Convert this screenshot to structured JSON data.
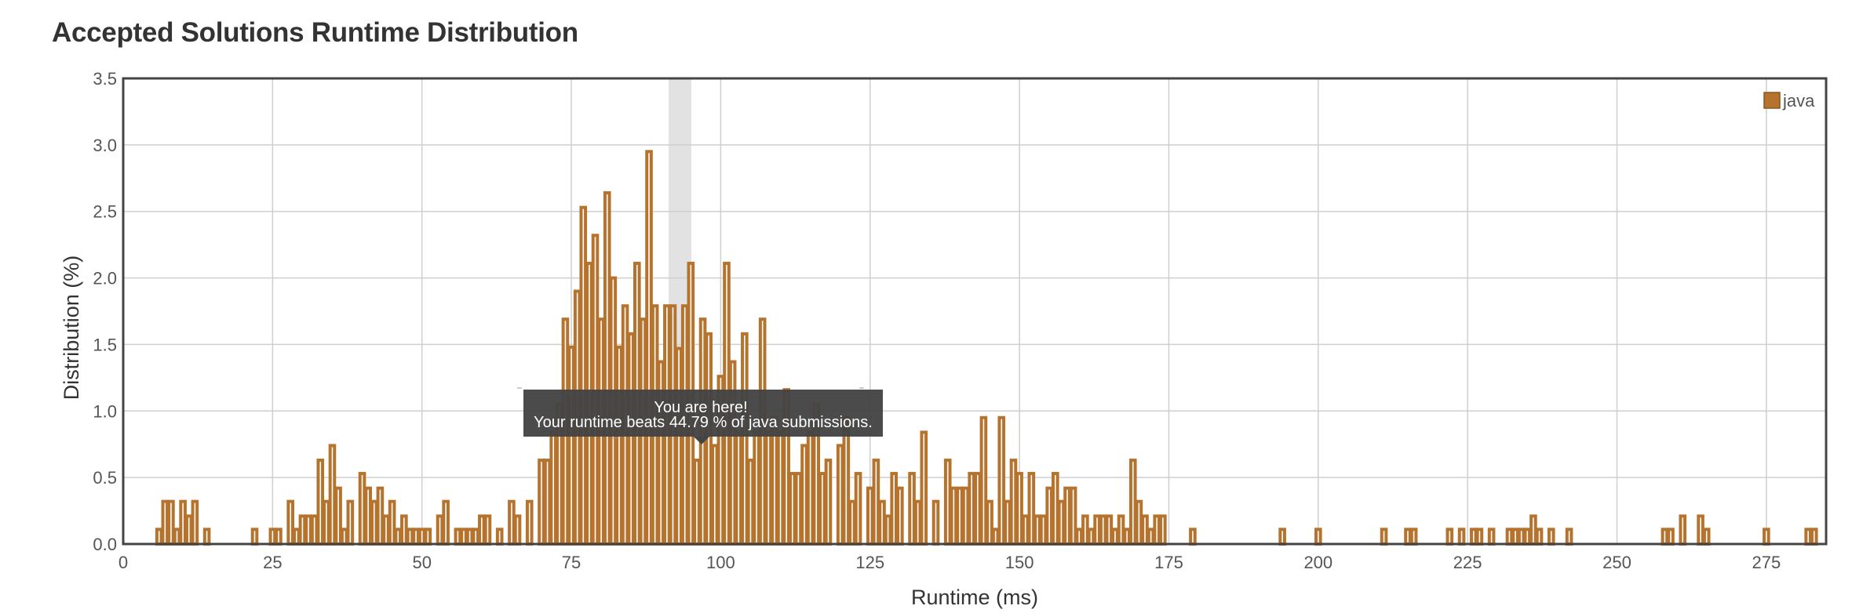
{
  "page_title": "Accepted Solutions Runtime Distribution",
  "chart_data": {
    "type": "bar",
    "title": "Accepted Solutions Runtime Distribution",
    "xlabel": "Runtime (ms)",
    "ylabel": "Distribution (%)",
    "xlim": [
      0,
      285
    ],
    "ylim": [
      0,
      3.5
    ],
    "x_ticks": [
      0,
      25,
      50,
      75,
      100,
      125,
      150,
      175,
      200,
      225,
      250,
      275
    ],
    "y_ticks": [
      "0.0",
      "0.5",
      "1.0",
      "1.5",
      "2.0",
      "2.5",
      "3.0",
      "3.5"
    ],
    "grid": true,
    "legend_position": "top-right",
    "highlight_runtime": 96,
    "series": [
      {
        "name": "java",
        "color": "#b5732d",
        "points": [
          [
            6,
            0.11
          ],
          [
            7,
            0.32
          ],
          [
            8,
            0.32
          ],
          [
            9,
            0.11
          ],
          [
            10,
            0.32
          ],
          [
            11,
            0.21
          ],
          [
            12,
            0.32
          ],
          [
            14,
            0.11
          ],
          [
            22,
            0.11
          ],
          [
            25,
            0.11
          ],
          [
            26,
            0.11
          ],
          [
            28,
            0.32
          ],
          [
            29,
            0.11
          ],
          [
            30,
            0.21
          ],
          [
            31,
            0.21
          ],
          [
            32,
            0.21
          ],
          [
            33,
            0.63
          ],
          [
            34,
            0.32
          ],
          [
            35,
            0.74
          ],
          [
            36,
            0.42
          ],
          [
            37,
            0.11
          ],
          [
            38,
            0.32
          ],
          [
            40,
            0.53
          ],
          [
            41,
            0.42
          ],
          [
            42,
            0.32
          ],
          [
            43,
            0.42
          ],
          [
            44,
            0.21
          ],
          [
            45,
            0.32
          ],
          [
            46,
            0.11
          ],
          [
            47,
            0.21
          ],
          [
            48,
            0.11
          ],
          [
            49,
            0.11
          ],
          [
            50,
            0.11
          ],
          [
            51,
            0.11
          ],
          [
            53,
            0.21
          ],
          [
            54,
            0.32
          ],
          [
            56,
            0.11
          ],
          [
            57,
            0.11
          ],
          [
            58,
            0.11
          ],
          [
            59,
            0.11
          ],
          [
            60,
            0.21
          ],
          [
            61,
            0.21
          ],
          [
            63,
            0.11
          ],
          [
            65,
            0.32
          ],
          [
            66,
            0.21
          ],
          [
            68,
            0.32
          ],
          [
            70,
            0.63
          ],
          [
            71,
            0.63
          ],
          [
            72,
            0.84
          ],
          [
            73,
            1.05
          ],
          [
            74,
            1.69
          ],
          [
            75,
            1.48
          ],
          [
            76,
            1.9
          ],
          [
            77,
            2.53
          ],
          [
            78,
            2.11
          ],
          [
            79,
            2.32
          ],
          [
            80,
            1.69
          ],
          [
            81,
            2.64
          ],
          [
            82,
            2.0
          ],
          [
            83,
            1.48
          ],
          [
            84,
            1.79
          ],
          [
            85,
            1.58
          ],
          [
            86,
            2.11
          ],
          [
            87,
            1.69
          ],
          [
            88,
            2.95
          ],
          [
            89,
            1.79
          ],
          [
            90,
            1.37
          ],
          [
            91,
            1.79
          ],
          [
            92,
            1.79
          ],
          [
            93,
            1.47
          ],
          [
            94,
            1.79
          ],
          [
            95,
            2.11
          ],
          [
            96,
            0.63
          ],
          [
            97,
            1.69
          ],
          [
            98,
            1.58
          ],
          [
            99,
            0.74
          ],
          [
            100,
            1.26
          ],
          [
            101,
            2.11
          ],
          [
            102,
            1.37
          ],
          [
            103,
            0.84
          ],
          [
            104,
            1.58
          ],
          [
            105,
            0.63
          ],
          [
            106,
            0.84
          ],
          [
            107,
            1.69
          ],
          [
            108,
            0.84
          ],
          [
            109,
            0.95
          ],
          [
            110,
            0.84
          ],
          [
            111,
            1.16
          ],
          [
            112,
            0.53
          ],
          [
            113,
            0.53
          ],
          [
            114,
            0.74
          ],
          [
            115,
            0.84
          ],
          [
            116,
            1.05
          ],
          [
            117,
            0.53
          ],
          [
            118,
            0.63
          ],
          [
            120,
            0.74
          ],
          [
            121,
            0.95
          ],
          [
            122,
            0.32
          ],
          [
            123,
            0.53
          ],
          [
            125,
            0.42
          ],
          [
            126,
            0.63
          ],
          [
            127,
            0.32
          ],
          [
            128,
            0.21
          ],
          [
            129,
            0.53
          ],
          [
            130,
            0.42
          ],
          [
            132,
            0.53
          ],
          [
            133,
            0.32
          ],
          [
            134,
            0.84
          ],
          [
            136,
            0.32
          ],
          [
            138,
            0.63
          ],
          [
            139,
            0.42
          ],
          [
            140,
            0.42
          ],
          [
            141,
            0.42
          ],
          [
            142,
            0.53
          ],
          [
            143,
            0.53
          ],
          [
            144,
            0.95
          ],
          [
            145,
            0.32
          ],
          [
            146,
            0.11
          ],
          [
            147,
            0.95
          ],
          [
            148,
            0.32
          ],
          [
            149,
            0.63
          ],
          [
            150,
            0.53
          ],
          [
            151,
            0.21
          ],
          [
            152,
            0.53
          ],
          [
            153,
            0.21
          ],
          [
            154,
            0.21
          ],
          [
            155,
            0.42
          ],
          [
            156,
            0.53
          ],
          [
            157,
            0.32
          ],
          [
            158,
            0.42
          ],
          [
            159,
            0.42
          ],
          [
            160,
            0.11
          ],
          [
            161,
            0.21
          ],
          [
            162,
            0.11
          ],
          [
            163,
            0.21
          ],
          [
            164,
            0.21
          ],
          [
            165,
            0.21
          ],
          [
            166,
            0.11
          ],
          [
            167,
            0.21
          ],
          [
            168,
            0.11
          ],
          [
            169,
            0.63
          ],
          [
            170,
            0.32
          ],
          [
            171,
            0.21
          ],
          [
            172,
            0.11
          ],
          [
            173,
            0.21
          ],
          [
            174,
            0.21
          ],
          [
            179,
            0.11
          ],
          [
            194,
            0.11
          ],
          [
            200,
            0.11
          ],
          [
            211,
            0.11
          ],
          [
            215,
            0.11
          ],
          [
            216,
            0.11
          ],
          [
            222,
            0.11
          ],
          [
            224,
            0.11
          ],
          [
            226,
            0.11
          ],
          [
            227,
            0.11
          ],
          [
            229,
            0.11
          ],
          [
            232,
            0.11
          ],
          [
            233,
            0.11
          ],
          [
            234,
            0.11
          ],
          [
            235,
            0.11
          ],
          [
            236,
            0.21
          ],
          [
            237,
            0.11
          ],
          [
            239,
            0.11
          ],
          [
            242,
            0.11
          ],
          [
            258,
            0.11
          ],
          [
            259,
            0.11
          ],
          [
            261,
            0.21
          ],
          [
            264,
            0.21
          ],
          [
            265,
            0.11
          ],
          [
            275,
            0.11
          ],
          [
            282,
            0.11
          ],
          [
            283,
            0.11
          ]
        ]
      }
    ]
  },
  "tooltip": {
    "line1": "You are here!",
    "line2": "Your runtime beats 44.79 % of java submissions."
  }
}
